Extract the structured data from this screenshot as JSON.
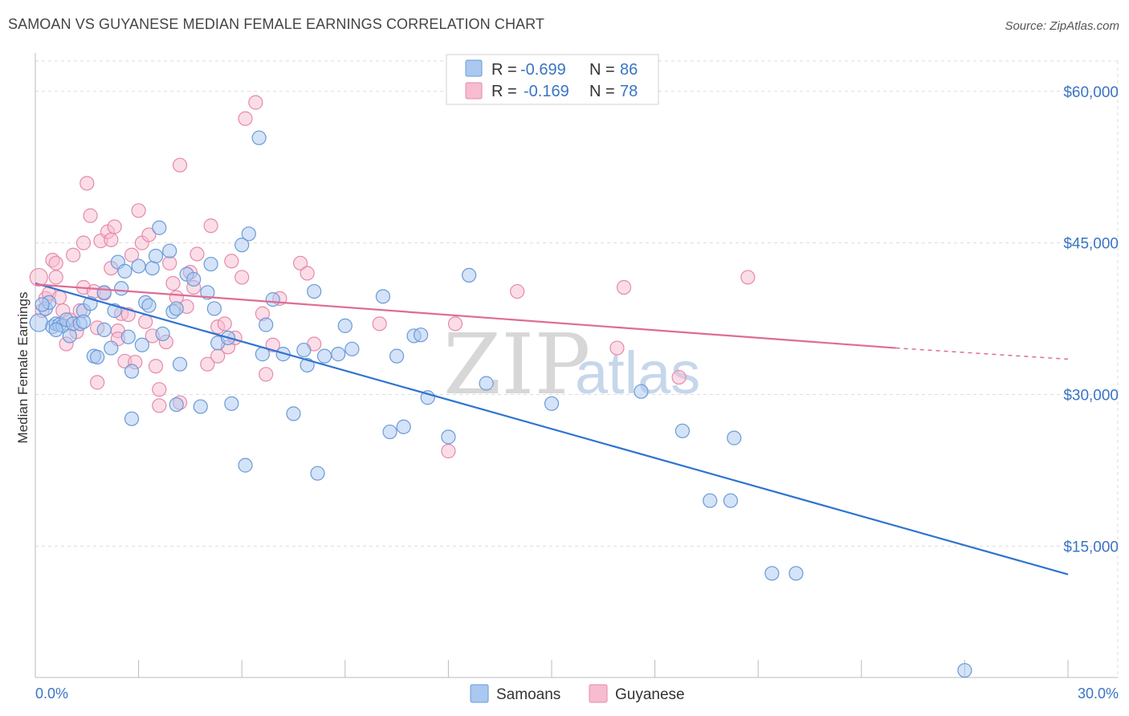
{
  "title": "SAMOAN VS GUYANESE MEDIAN FEMALE EARNINGS CORRELATION CHART",
  "source": "Source: ZipAtlas.com",
  "watermark": {
    "zip": "ZIP",
    "atlas": "atlas"
  },
  "colors": {
    "samoan_fill": "#aac8f0",
    "samoan_stroke": "#6a9ad8",
    "samoan_line": "#2f74d0",
    "guyanese_fill": "#f7bcd0",
    "guyanese_stroke": "#e58aab",
    "guyanese_line": "#e06b95",
    "grid": "#dddddd",
    "tick_text": "#3a74c4"
  },
  "legend": {
    "samoan": {
      "r_label": "R =",
      "r_value": "-0.699",
      "n_label": "N =",
      "n_value": "86"
    },
    "guyanese": {
      "r_label": "R =",
      "r_value": "-0.169",
      "n_label": "N =",
      "n_value": "78"
    }
  },
  "chart_data": {
    "type": "scatter",
    "title": "SAMOAN VS GUYANESE MEDIAN FEMALE EARNINGS CORRELATION CHART",
    "xlabel": "",
    "ylabel": "Median Female Earnings",
    "xlim": [
      0,
      30
    ],
    "ylim": [
      2000,
      63000
    ],
    "x_tick_labels": [
      "0.0%",
      "30.0%"
    ],
    "y_ticks": [
      15000,
      30000,
      45000,
      60000
    ],
    "y_tick_labels": [
      "$15,000",
      "$30,000",
      "$45,000",
      "$60,000"
    ],
    "legend_position": "top-center",
    "bottom_legend": [
      "Samoans",
      "Guyanese"
    ],
    "series": [
      {
        "name": "Samoans",
        "r": -0.699,
        "n": 86,
        "trend": {
          "x0": 0,
          "y0": 41000,
          "x1": 30,
          "y1": 12200
        },
        "points": [
          [
            0.1,
            37100
          ],
          [
            0.3,
            38500
          ],
          [
            0.4,
            39100
          ],
          [
            0.5,
            36700
          ],
          [
            0.6,
            37000
          ],
          [
            0.7,
            36900
          ],
          [
            0.8,
            36800
          ],
          [
            0.9,
            37400
          ],
          [
            1.0,
            35800
          ],
          [
            1.1,
            37000
          ],
          [
            1.3,
            37000
          ],
          [
            1.4,
            38300
          ],
          [
            1.6,
            39000
          ],
          [
            1.7,
            33800
          ],
          [
            1.8,
            33700
          ],
          [
            2.0,
            36400
          ],
          [
            2.0,
            40100
          ],
          [
            2.2,
            34600
          ],
          [
            2.3,
            38300
          ],
          [
            2.4,
            43100
          ],
          [
            2.5,
            40500
          ],
          [
            2.6,
            42200
          ],
          [
            2.7,
            35700
          ],
          [
            2.8,
            27600
          ],
          [
            2.8,
            32300
          ],
          [
            3.0,
            42700
          ],
          [
            3.1,
            34900
          ],
          [
            3.2,
            39100
          ],
          [
            3.4,
            42500
          ],
          [
            3.5,
            43700
          ],
          [
            3.6,
            46500
          ],
          [
            3.7,
            36000
          ],
          [
            3.9,
            44200
          ],
          [
            4.0,
            38200
          ],
          [
            4.1,
            38500
          ],
          [
            4.2,
            33000
          ],
          [
            4.4,
            41900
          ],
          [
            4.6,
            41400
          ],
          [
            4.8,
            28800
          ],
          [
            5.0,
            40100
          ],
          [
            5.1,
            42900
          ],
          [
            5.2,
            38500
          ],
          [
            5.3,
            35100
          ],
          [
            5.6,
            35600
          ],
          [
            5.7,
            29100
          ],
          [
            6.0,
            44800
          ],
          [
            6.1,
            23000
          ],
          [
            6.2,
            45900
          ],
          [
            6.5,
            55400
          ],
          [
            6.6,
            34000
          ],
          [
            6.7,
            36900
          ],
          [
            6.9,
            39400
          ],
          [
            7.2,
            34000
          ],
          [
            7.5,
            28100
          ],
          [
            7.8,
            34400
          ],
          [
            7.9,
            32900
          ],
          [
            8.1,
            40200
          ],
          [
            8.2,
            22200
          ],
          [
            8.4,
            33800
          ],
          [
            8.8,
            34000
          ],
          [
            9.0,
            36800
          ],
          [
            9.2,
            34500
          ],
          [
            10.1,
            39700
          ],
          [
            10.3,
            26300
          ],
          [
            10.5,
            33800
          ],
          [
            10.7,
            26800
          ],
          [
            11.0,
            35800
          ],
          [
            11.2,
            35900
          ],
          [
            11.4,
            29700
          ],
          [
            12.0,
            25800
          ],
          [
            12.6,
            41800
          ],
          [
            13.1,
            31100
          ],
          [
            15.0,
            29100
          ],
          [
            17.6,
            30300
          ],
          [
            18.8,
            26400
          ],
          [
            19.6,
            19500
          ],
          [
            20.2,
            19500
          ],
          [
            20.3,
            25700
          ],
          [
            21.4,
            12300
          ],
          [
            22.1,
            12300
          ],
          [
            27.0,
            2700
          ],
          [
            0.2,
            38900
          ],
          [
            0.6,
            36400
          ],
          [
            1.4,
            37200
          ],
          [
            3.3,
            38800
          ],
          [
            4.1,
            29000
          ]
        ]
      },
      {
        "name": "Guyanese",
        "r": -0.169,
        "n": 78,
        "trend": {
          "x0": 0,
          "y0": 40900,
          "x1": 25,
          "y1": 34600,
          "x_dash_end": 30,
          "y_dash_end": 33500
        },
        "points": [
          [
            0.1,
            41600
          ],
          [
            0.2,
            38300
          ],
          [
            0.3,
            39500
          ],
          [
            0.4,
            40000
          ],
          [
            0.5,
            43300
          ],
          [
            0.6,
            41600
          ],
          [
            0.6,
            43000
          ],
          [
            0.7,
            39600
          ],
          [
            0.8,
            38300
          ],
          [
            0.9,
            35000
          ],
          [
            1.0,
            37400
          ],
          [
            1.1,
            43800
          ],
          [
            1.2,
            36200
          ],
          [
            1.3,
            38300
          ],
          [
            1.4,
            40600
          ],
          [
            1.4,
            45000
          ],
          [
            1.5,
            50900
          ],
          [
            1.6,
            47700
          ],
          [
            1.7,
            40200
          ],
          [
            1.8,
            36600
          ],
          [
            1.8,
            31200
          ],
          [
            1.9,
            45200
          ],
          [
            2.0,
            40000
          ],
          [
            2.1,
            46100
          ],
          [
            2.2,
            42500
          ],
          [
            2.2,
            45300
          ],
          [
            2.3,
            46600
          ],
          [
            2.4,
            36300
          ],
          [
            2.5,
            38000
          ],
          [
            2.6,
            33300
          ],
          [
            2.7,
            37900
          ],
          [
            2.8,
            43800
          ],
          [
            2.9,
            33200
          ],
          [
            3.0,
            48200
          ],
          [
            3.1,
            45000
          ],
          [
            3.2,
            37200
          ],
          [
            3.3,
            45800
          ],
          [
            3.4,
            35800
          ],
          [
            3.5,
            32800
          ],
          [
            3.6,
            28900
          ],
          [
            3.6,
            30500
          ],
          [
            3.8,
            35200
          ],
          [
            3.9,
            43000
          ],
          [
            4.0,
            41000
          ],
          [
            4.1,
            39600
          ],
          [
            4.2,
            52700
          ],
          [
            4.2,
            29200
          ],
          [
            4.4,
            38700
          ],
          [
            4.5,
            42100
          ],
          [
            4.6,
            40600
          ],
          [
            4.7,
            43900
          ],
          [
            5.0,
            33000
          ],
          [
            5.1,
            46700
          ],
          [
            5.3,
            36700
          ],
          [
            5.5,
            37000
          ],
          [
            5.6,
            34700
          ],
          [
            5.7,
            43200
          ],
          [
            5.8,
            35600
          ],
          [
            6.0,
            41600
          ],
          [
            6.1,
            57300
          ],
          [
            6.4,
            58900
          ],
          [
            6.6,
            38000
          ],
          [
            6.7,
            32000
          ],
          [
            6.9,
            34900
          ],
          [
            7.1,
            39500
          ],
          [
            7.7,
            43000
          ],
          [
            7.9,
            42000
          ],
          [
            8.1,
            35000
          ],
          [
            10.0,
            37000
          ],
          [
            12.0,
            24400
          ],
          [
            12.2,
            37000
          ],
          [
            14.0,
            40200
          ],
          [
            16.9,
            34600
          ],
          [
            17.1,
            40600
          ],
          [
            18.7,
            31700
          ],
          [
            20.7,
            41600
          ],
          [
            2.4,
            35500
          ],
          [
            5.3,
            33800
          ]
        ]
      }
    ]
  }
}
